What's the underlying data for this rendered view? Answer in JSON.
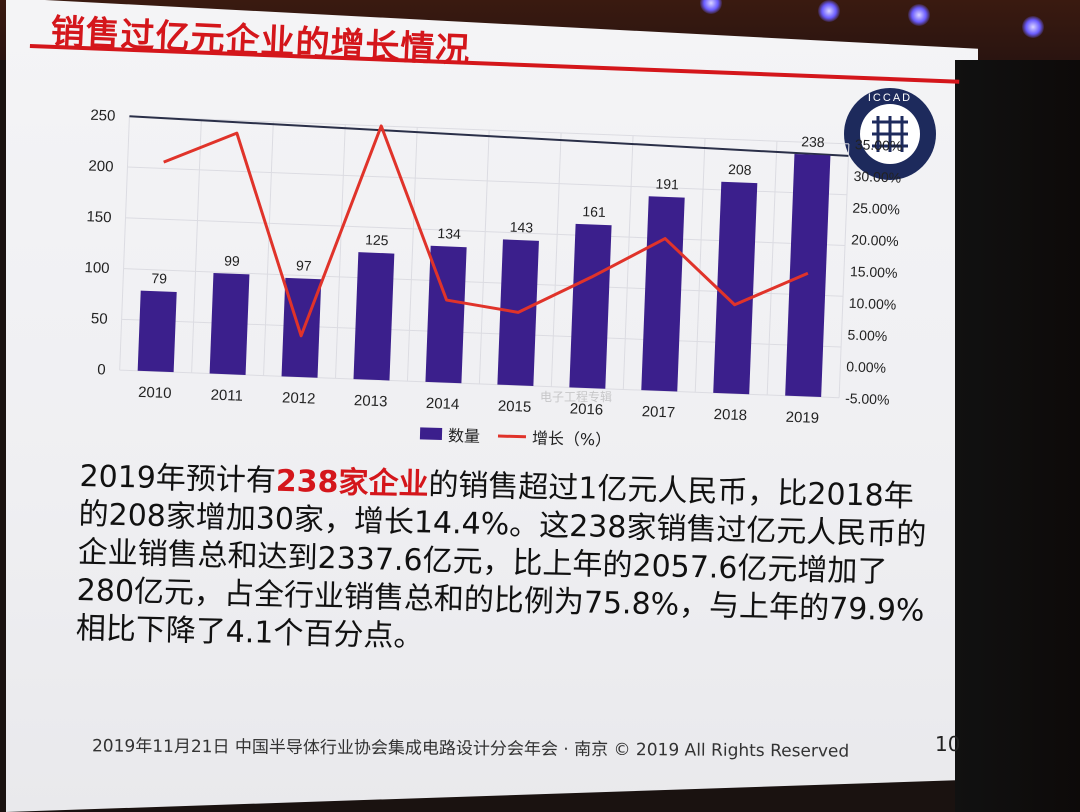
{
  "title": "销售过亿元企业的增长情况",
  "logo_text": "ICCAD",
  "chart_data": {
    "type": "bar",
    "categories": [
      "2010",
      "2011",
      "2012",
      "2013",
      "2014",
      "2015",
      "2016",
      "2017",
      "2018",
      "2019"
    ],
    "series": [
      {
        "name": "数量",
        "type": "bar",
        "axis": "left",
        "values": [
          79,
          99,
          97,
          125,
          134,
          143,
          161,
          191,
          208,
          238
        ],
        "color": "#3b1f8c"
      },
      {
        "name": "增长（%）",
        "type": "line",
        "axis": "right",
        "values": [
          28.0,
          33.0,
          1.5,
          35.0,
          8.0,
          6.5,
          12.5,
          19.0,
          9.0,
          14.4
        ],
        "color": "#e0332a"
      }
    ],
    "y_left": {
      "min": 0,
      "max": 250,
      "ticks": [
        "0",
        "50",
        "100",
        "150",
        "200",
        "250"
      ]
    },
    "y_right": {
      "min": -5,
      "max": 35,
      "ticks": [
        "-5.00%",
        "0.00%",
        "5.00%",
        "10.00%",
        "15.00%",
        "20.00%",
        "25.00%",
        "30.00%",
        "35.00%"
      ]
    },
    "data_labels": [
      "79",
      "99",
      "97",
      "125",
      "134",
      "143",
      "161",
      "191",
      "208",
      "238"
    ]
  },
  "legend": {
    "bar": "数量",
    "line": "增长（%）"
  },
  "body": {
    "p1": "2019年预计有",
    "highlight": "238家企业",
    "p2": "的销售超过1亿元人民币，比2018年的208家增加30家，增长14.4%。这238家销售过亿元人民币的企业销售总和达到2337.6亿元，比上年的2057.6亿元增加了280亿元，占全行业销售总和的比例为75.8%，与上年的79.9%相比下降了4.1个百分点。"
  },
  "footer": "2019年11月21日 中国半导体行业协会集成电路设计分会年会 · 南京 © 2019 All Rights Reserved",
  "page_number": "10",
  "watermark": "电子工程专辑"
}
